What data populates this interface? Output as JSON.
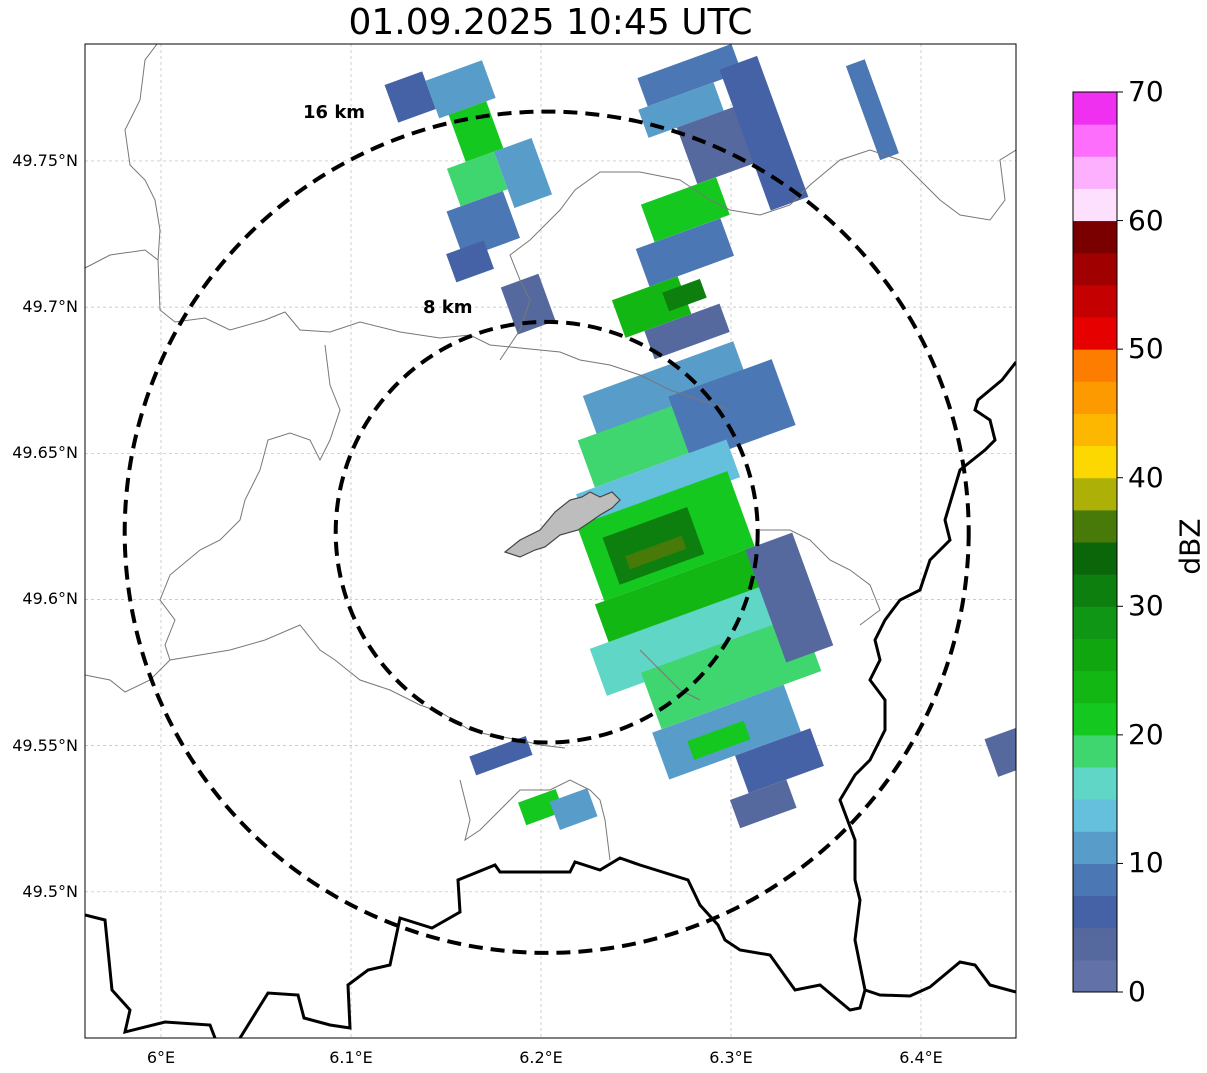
{
  "title": "01.09.2025 10:45 UTC",
  "map": {
    "lon_range": [
      5.96,
      6.45
    ],
    "lat_range": [
      49.45,
      49.79
    ],
    "center": {
      "lon": 6.203,
      "lat": 49.623
    },
    "lat_ticks": [
      "49.5°N",
      "49.55°N",
      "49.6°N",
      "49.65°N",
      "49.7°N",
      "49.75°N"
    ],
    "lon_ticks": [
      "6°E",
      "6.1°E",
      "6.2°E",
      "6.3°E",
      "6.4°E"
    ],
    "grid": "dashed light grey",
    "range_rings": [
      {
        "label": "8 km",
        "radius_km": 8
      },
      {
        "label": "16 km",
        "radius_km": 16
      }
    ],
    "urban_area_color": "#bdbdbd"
  },
  "colorbar": {
    "label": "dBZ",
    "min": 0,
    "max": 70,
    "tick_labels": [
      "0",
      "10",
      "20",
      "30",
      "40",
      "50",
      "60",
      "70"
    ],
    "colors": [
      "#6272a8",
      "#56699f",
      "#4662a6",
      "#4b78b4",
      "#589dca",
      "#64c0dc",
      "#60d6c6",
      "#3fd56f",
      "#15c81f",
      "#13b713",
      "#0fa60f",
      "#0e9614",
      "#0c7f0e",
      "#0b6509",
      "#477a09",
      "#adb107",
      "#fdd800",
      "#fdb700",
      "#fd9a00",
      "#fd7d00",
      "#e60000",
      "#c40000",
      "#a10000",
      "#7a0000",
      "#fde0fd",
      "#fdb0fd",
      "#fd6efd",
      "#f030f0"
    ]
  }
}
